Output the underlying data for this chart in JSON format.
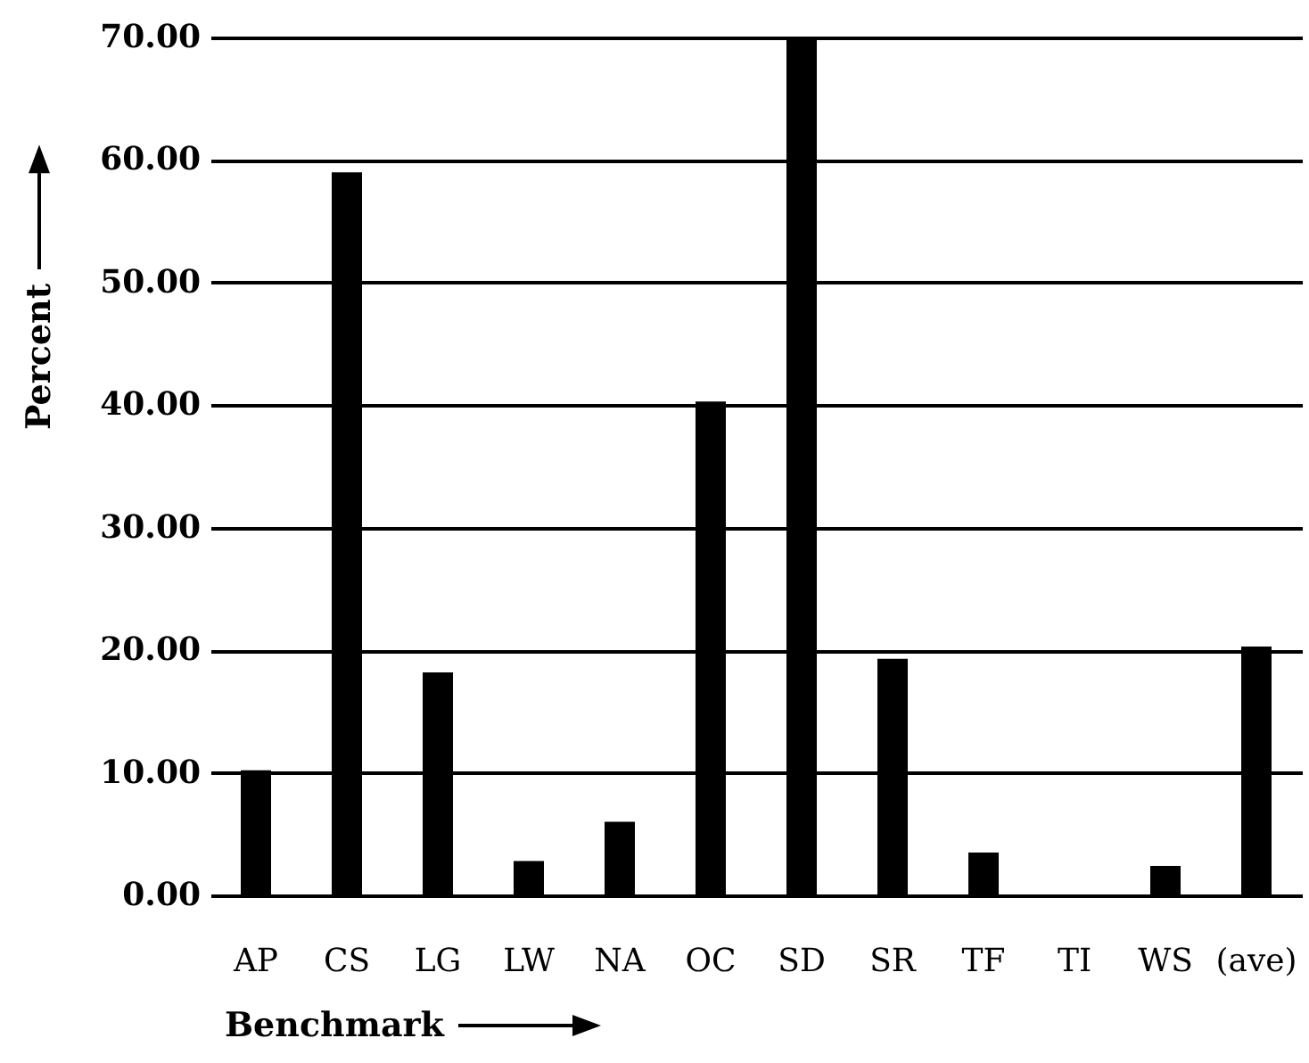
{
  "chart_data": {
    "type": "bar",
    "xlabel": "Benchmark",
    "ylabel": "Percent",
    "categories": [
      "AP",
      "CS",
      "LG",
      "LW",
      "NA",
      "OC",
      "SD",
      "SR",
      "TF",
      "TI",
      "WS",
      "(ave)"
    ],
    "values": [
      10.2,
      59.0,
      18.2,
      2.8,
      6.0,
      40.3,
      69.8,
      19.3,
      3.5,
      0,
      2.4,
      20.3
    ],
    "color": "#000000",
    "ylim": [
      0,
      70
    ],
    "yticks": [
      {
        "value": 0,
        "label": "0.00"
      },
      {
        "value": 10,
        "label": "10.00"
      },
      {
        "value": 20,
        "label": "20.00"
      },
      {
        "value": 30,
        "label": "30.00"
      },
      {
        "value": 40,
        "label": "40.00"
      },
      {
        "value": 50,
        "label": "50.00"
      },
      {
        "value": 60,
        "label": "60.00"
      },
      {
        "value": 70,
        "label": "70.00"
      }
    ],
    "grid": "y"
  }
}
